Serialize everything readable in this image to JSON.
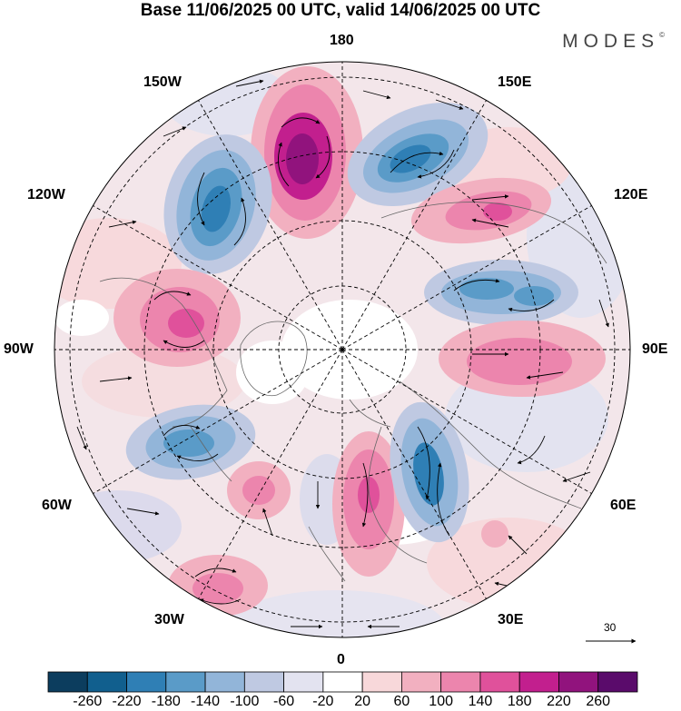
{
  "title": "Base 11/06/2025 00 UTC, valid 14/06/2025 00 UTC",
  "brand": "MODES",
  "brand_mark": "©",
  "longitude_labels": {
    "lon_180": "180",
    "lon_150e": "150E",
    "lon_120e": "120E",
    "lon_90e": "90E",
    "lon_60e": "60E",
    "lon_30e": "30E",
    "lon_0": "0",
    "lon_30w": "30W",
    "lon_60w": "60W",
    "lon_90w": "90W",
    "lon_120w": "120W",
    "lon_150w": "150W"
  },
  "reference_vector": "30",
  "colorbar": {
    "ticks": [
      "-260",
      "-220",
      "-180",
      "-140",
      "-100",
      "-60",
      "-20",
      "20",
      "60",
      "100",
      "140",
      "180",
      "220",
      "260"
    ],
    "colors": [
      "#0c3d5e",
      "#115f8e",
      "#2f7fb5",
      "#5a9bc8",
      "#92b5d9",
      "#bfc9e2",
      "#e3e3f0",
      "#ffffff",
      "#f8d8da",
      "#f2b0c0",
      "#ec85ad",
      "#e0519b",
      "#c21f8e",
      "#91137d",
      "#5a0b6b"
    ]
  },
  "anomalies": [
    {
      "id": "lobe-180-pos",
      "value": 260
    },
    {
      "id": "lobe-150w-neg",
      "value": -220
    },
    {
      "id": "lobe-150e-neg",
      "value": -220
    },
    {
      "id": "lobe-120e-pos",
      "value": 180
    },
    {
      "id": "lobe-100e-neg",
      "value": -180
    },
    {
      "id": "lobe-90e-pos",
      "value": 140
    },
    {
      "id": "lobe-90w-pos",
      "value": 180
    },
    {
      "id": "lobe-60w-neg",
      "value": -180
    },
    {
      "id": "lobe-10e-pos",
      "value": 180
    },
    {
      "id": "lobe-30e-neg",
      "value": -220
    },
    {
      "id": "lobe-30w-pos",
      "value": 140
    }
  ]
}
